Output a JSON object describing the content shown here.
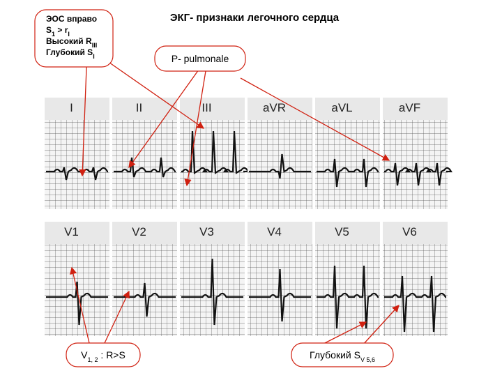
{
  "title": "ЭКГ- признаки легочного сердца",
  "annotations": [
    {
      "lines": [
        [
          "ЭОС вправо"
        ],
        [
          "S",
          "1",
          " > r",
          "I"
        ],
        [
          "Высокий R",
          "III"
        ],
        [
          "Глубокий S",
          "I"
        ]
      ]
    },
    {
      "lines": [
        [
          "P- pulmonale"
        ]
      ]
    },
    {
      "lines": [
        [
          "V",
          "1, 2",
          " : R>S"
        ]
      ]
    },
    {
      "lines": [
        [
          "Глубокий  S",
          "V 5,6"
        ]
      ]
    }
  ],
  "leads": {
    "top": [
      "I",
      "II",
      "III",
      "aVR",
      "aVL",
      "aVF"
    ],
    "bottom": [
      "V1",
      "V2",
      "V3",
      "V4",
      "V5",
      "V6"
    ]
  }
}
